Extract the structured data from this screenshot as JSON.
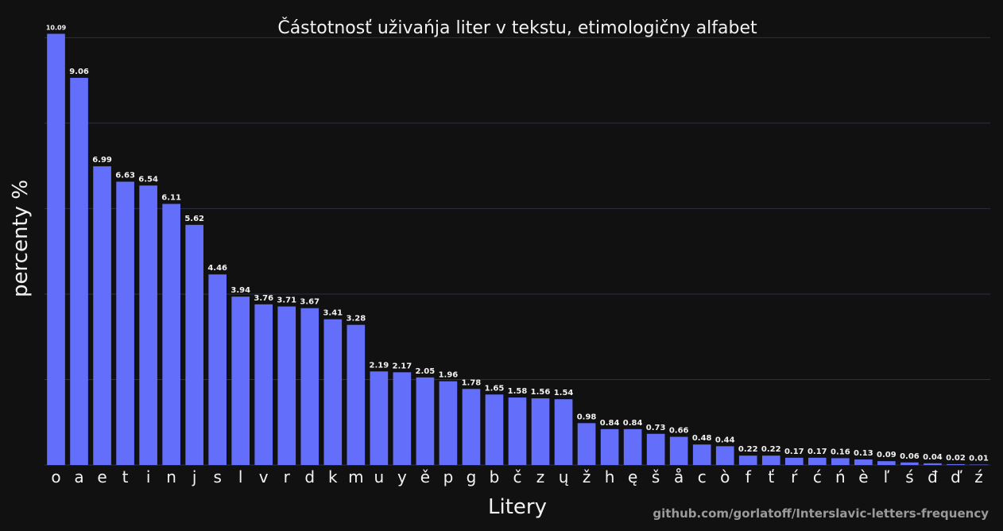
{
  "chart_data": {
    "type": "bar",
    "title": "Částotnosť uživańja liter v tekstu, etimologičny alfabet",
    "xlabel": "Litery",
    "ylabel": "percenty %",
    "categories": [
      "o",
      "a",
      "e",
      "t",
      "i",
      "n",
      "j",
      "s",
      "l",
      "v",
      "r",
      "d",
      "k",
      "m",
      "u",
      "y",
      "ě",
      "p",
      "g",
      "b",
      "č",
      "z",
      "ų",
      "ž",
      "h",
      "ę",
      "š",
      "å",
      "c",
      "ò",
      "f",
      "ť",
      "ŕ",
      "ć",
      "ń",
      "è",
      "ľ",
      "ś",
      "đ",
      "ď",
      "ź"
    ],
    "values": [
      10.09,
      9.06,
      6.99,
      6.63,
      6.54,
      6.11,
      5.62,
      4.46,
      3.94,
      3.76,
      3.71,
      3.67,
      3.41,
      3.28,
      2.19,
      2.17,
      2.05,
      1.96,
      1.78,
      1.65,
      1.58,
      1.56,
      1.54,
      0.98,
      0.84,
      0.84,
      0.73,
      0.66,
      0.48,
      0.44,
      0.22,
      0.22,
      0.17,
      0.17,
      0.16,
      0.13,
      0.09,
      0.06,
      0.04,
      0.02,
      0.01
    ],
    "value_labels": [
      "10.09",
      "9.06",
      "6.99",
      "6.63",
      "6.54",
      "6.11",
      "5.62",
      "4.46",
      "3.94",
      "3.76",
      "3.71",
      "3.67",
      "3.41",
      "3.28",
      "2.19",
      "2.17",
      "2.05",
      "1.96",
      "1.78",
      "1.65",
      "1.58",
      "1.56",
      "1.54",
      "0.98",
      "0.84",
      "0.84",
      "0.73",
      "0.66",
      "0.48",
      "0.44",
      "0.22",
      "0.22",
      "0.17",
      "0.17",
      "0.16",
      "0.13",
      "0.09",
      "0.06",
      "0.04",
      "0.02",
      "0.01"
    ],
    "ylim": [
      0,
      10.1
    ],
    "gridlines": [
      0,
      2,
      4,
      6,
      8,
      10
    ],
    "grid": true,
    "bar_color": "#636efa",
    "background": "#111111",
    "grid_color": "#2c3145"
  },
  "credit": "github.com/gorlatoff/Interslavic-letters-frequency"
}
